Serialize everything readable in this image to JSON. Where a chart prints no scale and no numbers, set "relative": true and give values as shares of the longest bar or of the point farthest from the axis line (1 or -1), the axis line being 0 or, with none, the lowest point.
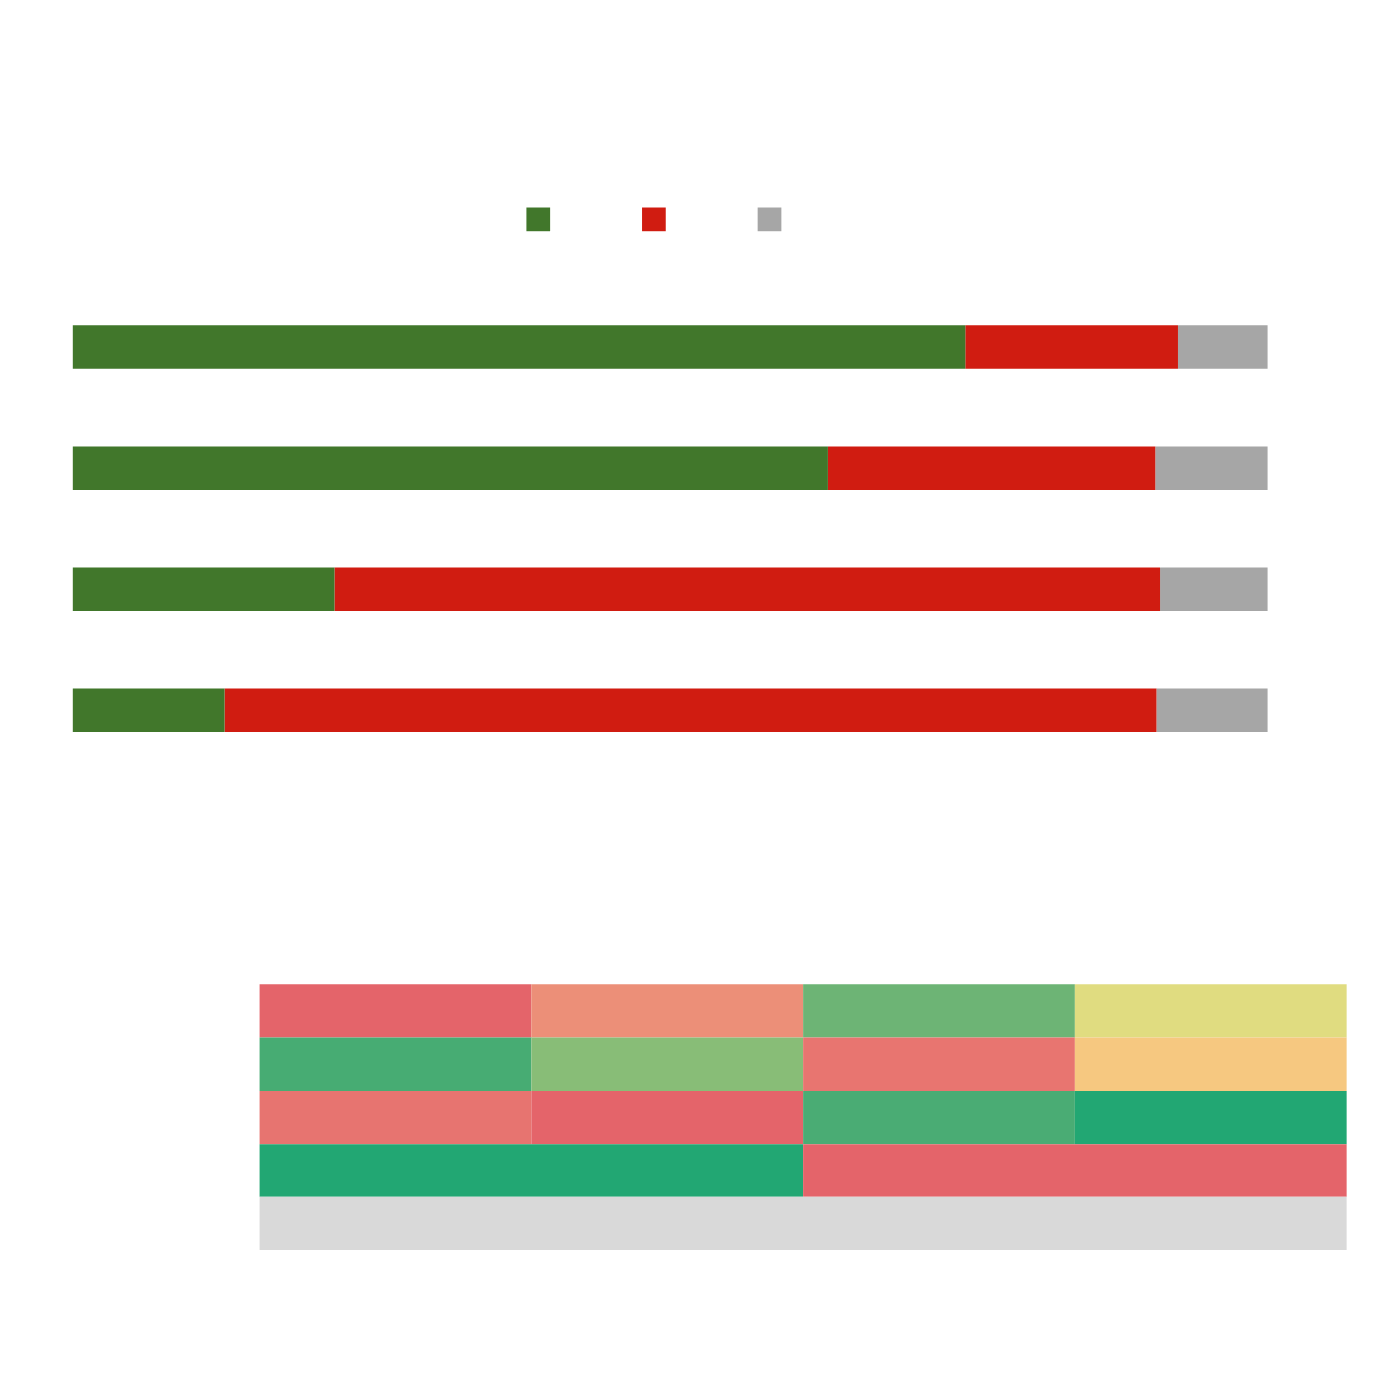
{
  "chart_data": {
    "type": "bar",
    "orientation": "horizontal",
    "stacked": true,
    "relative": true,
    "categories": [
      null,
      null,
      null,
      null
    ],
    "series": [
      {
        "color": "#41772b",
        "values": [
          0.747,
          0.632,
          0.219,
          0.127
        ]
      },
      {
        "color": "#d01c11",
        "values": [
          0.178,
          0.274,
          0.691,
          0.78
        ]
      },
      {
        "color": "#a6a6a6",
        "values": [
          0.075,
          0.094,
          0.09,
          0.093
        ]
      }
    ]
  }
}
